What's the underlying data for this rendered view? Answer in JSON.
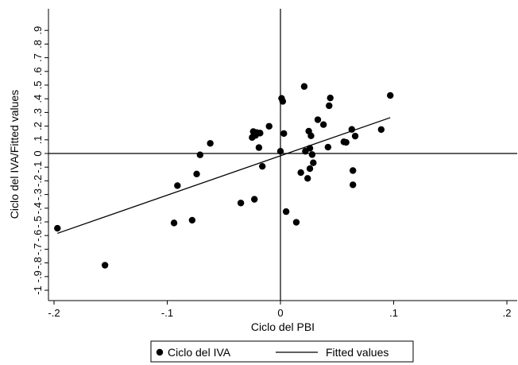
{
  "chart_data": {
    "type": "scatter",
    "xlabel": "Ciclo del PBI",
    "ylabel": "Ciclo del IVA/Fitted values",
    "xlim": [
      -0.2,
      0.2
    ],
    "ylim": [
      -1.0,
      1.0
    ],
    "x_ticks": [
      -0.2,
      -0.1,
      0,
      0.1,
      0.2
    ],
    "x_tick_labels": [
      "-.2",
      "-.1",
      "0",
      ".1",
      ".2"
    ],
    "y_ticks": [
      -1.0,
      -0.9,
      -0.8,
      -0.7,
      -0.6,
      -0.5,
      -0.4,
      -0.3,
      -0.2,
      -0.1,
      0,
      0.1,
      0.2,
      0.3,
      0.4,
      0.5,
      0.6,
      0.7,
      0.8,
      0.9
    ],
    "y_tick_labels": [
      "-1",
      "-.9",
      "-.8",
      "-.7",
      "-.6",
      "-.5",
      "-.4",
      "-.3",
      "-.2",
      "-.1",
      "0",
      ".1",
      ".2",
      ".3",
      ".4",
      ".5",
      ".6",
      ".7",
      ".8",
      ".9"
    ],
    "reference_lines": {
      "x": 0,
      "y": 0
    },
    "legend": {
      "placement": "bottom",
      "entries": [
        "Ciclo del IVA",
        "Fitted values"
      ]
    },
    "series": [
      {
        "name": "Ciclo del IVA",
        "type": "scatter",
        "marker": "circle",
        "color": "#000000",
        "x": [
          -0.197,
          -0.155,
          -0.094,
          -0.091,
          -0.078,
          -0.074,
          -0.071,
          -0.062,
          -0.035,
          -0.025,
          -0.024,
          -0.023,
          -0.022,
          -0.021,
          -0.019,
          -0.018,
          -0.016,
          -0.01,
          0.0,
          0.001,
          0.002,
          0.003,
          0.005,
          0.014,
          0.018,
          0.021,
          0.022,
          0.024,
          0.025,
          0.026,
          0.026,
          0.027,
          0.028,
          0.029,
          0.033,
          0.038,
          0.042,
          0.043,
          0.044,
          0.056,
          0.058,
          0.063,
          0.064,
          0.064,
          0.066,
          0.089,
          0.097
        ],
        "y": [
          -0.547,
          -0.817,
          -0.508,
          -0.235,
          -0.488,
          -0.15,
          -0.01,
          0.074,
          -0.362,
          0.117,
          0.16,
          -0.335,
          0.132,
          0.153,
          0.043,
          0.149,
          -0.094,
          0.199,
          0.016,
          0.403,
          0.381,
          0.146,
          -0.425,
          -0.503,
          -0.14,
          0.49,
          0.016,
          -0.182,
          0.163,
          0.038,
          -0.111,
          0.129,
          -0.008,
          -0.068,
          0.247,
          0.211,
          0.046,
          0.349,
          0.406,
          0.085,
          0.081,
          0.176,
          -0.229,
          -0.125,
          0.127,
          0.175,
          0.424
        ]
      },
      {
        "name": "Fitted values",
        "type": "line",
        "color": "#000000",
        "x": [
          -0.197,
          0.097
        ],
        "y": [
          -0.584,
          0.262
        ]
      }
    ]
  }
}
